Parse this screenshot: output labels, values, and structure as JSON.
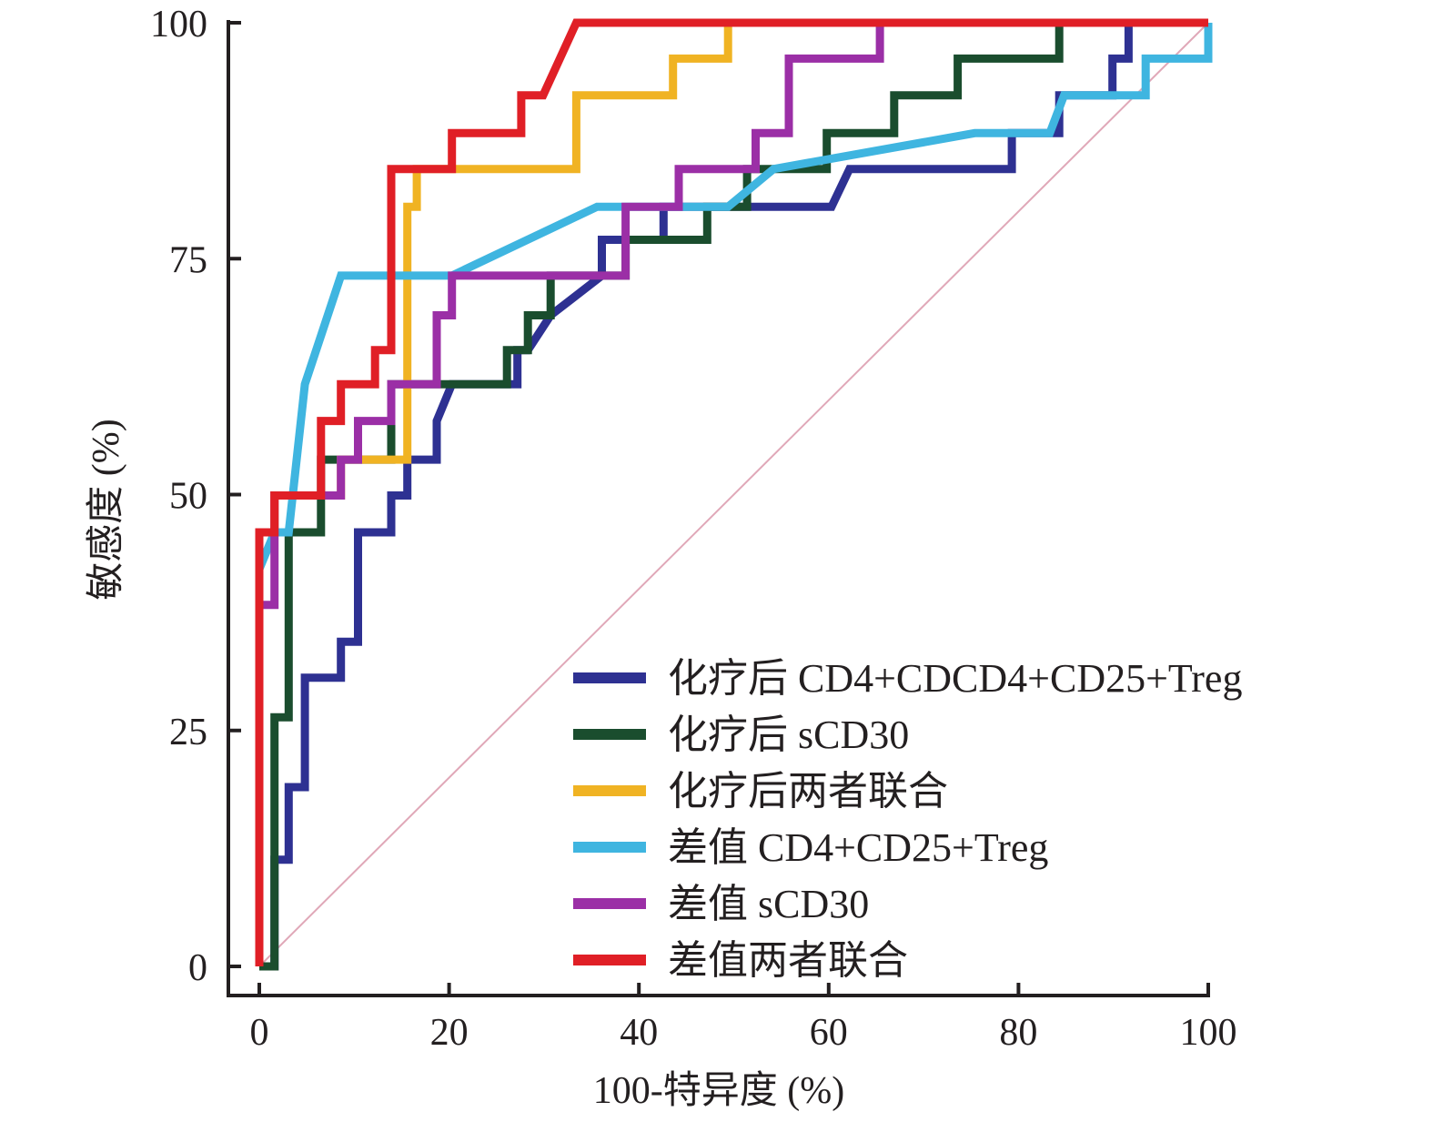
{
  "chart_data": {
    "type": "line",
    "title": "",
    "xlabel": "100-特异度 (%)",
    "ylabel": "敏感度 (%)",
    "xlim": [
      0,
      100
    ],
    "ylim": [
      0,
      100
    ],
    "xticks": [
      0,
      20,
      40,
      60,
      80,
      100
    ],
    "yticks": [
      0,
      25,
      50,
      75,
      100
    ],
    "xtick_labels": [
      "0",
      "20",
      "40",
      "60",
      "80",
      "100"
    ],
    "ytick_labels": [
      "0",
      "25",
      "50",
      "75",
      "100"
    ],
    "grid": false,
    "legend_position": "bottom-right",
    "reference_line": {
      "name": "diagonal",
      "x": [
        0,
        100
      ],
      "y": [
        0,
        100
      ],
      "color": "#e0a8b8"
    },
    "series": [
      {
        "name": "化疗后 CD4+CDCD4+CD25+Treg",
        "color": "#2e3192",
        "x": [
          0,
          1.6,
          1.6,
          3.1,
          3.1,
          4.8,
          4.8,
          8.6,
          8.6,
          10.4,
          10.4,
          13.9,
          13.9,
          15.6,
          15.6,
          18.7,
          18.7,
          20.3,
          27.2,
          27.2,
          28.3,
          30.7,
          30.7,
          36.1,
          36.1,
          38.6,
          42.6,
          42.6,
          45.4,
          60.3,
          62.2,
          79.3,
          79.3,
          84.3,
          84.3,
          89.9,
          89.9,
          91.6,
          91.6,
          100
        ],
        "y": [
          0,
          0,
          11.3,
          11.3,
          19,
          19,
          30.6,
          30.6,
          34.4,
          34.4,
          46,
          46,
          49.9,
          49.9,
          53.7,
          53.7,
          57.8,
          61.7,
          61.7,
          65.3,
          65.3,
          69,
          69,
          73.2,
          77,
          77,
          77,
          80.5,
          80.5,
          80.5,
          84.5,
          84.5,
          88.3,
          88.3,
          92.3,
          92.3,
          96.2,
          96.2,
          100,
          100
        ]
      },
      {
        "name": "化疗后 sCD30",
        "color": "#1a4d2e",
        "x": [
          0,
          1.6,
          1.6,
          3.1,
          3.1,
          6.5,
          6.5,
          13.9,
          13.9,
          26.1,
          26.1,
          28.3,
          28.3,
          30.7,
          30.7,
          38.6,
          38.6,
          47.2,
          47.2,
          51.4,
          51.4,
          59.8,
          59.8,
          66.9,
          66.9,
          73.6,
          73.6,
          84.3,
          84.3,
          94.8,
          94.8,
          100
        ],
        "y": [
          0,
          0,
          26.4,
          26.4,
          46,
          46,
          53.7,
          53.7,
          61.7,
          61.7,
          65.3,
          65.3,
          69,
          69,
          73.2,
          73.2,
          77,
          77,
          80.5,
          80.5,
          84.5,
          84.5,
          88.3,
          88.3,
          92.3,
          92.3,
          96.2,
          96.2,
          100,
          100,
          100,
          100
        ]
      },
      {
        "name": "化疗后两者联合",
        "color": "#f0b323",
        "x": [
          0,
          0,
          1.6,
          1.6,
          8.6,
          8.6,
          15.6,
          15.6,
          16.6,
          16.6,
          33.4,
          33.4,
          43.6,
          43.6,
          49.4,
          49.4,
          100
        ],
        "y": [
          0,
          46,
          46,
          49.9,
          49.9,
          53.7,
          53.7,
          80.5,
          80.5,
          84.5,
          84.5,
          92.3,
          92.3,
          96.2,
          96.2,
          100,
          100
        ]
      },
      {
        "name": "差值 CD4+CD25+Treg",
        "color": "#3fb5e0",
        "x": [
          0,
          0,
          1.6,
          3.1,
          4.8,
          8.6,
          20.3,
          35.6,
          49.4,
          54.2,
          75.4,
          83.3,
          84.8,
          93.4,
          93.4,
          100,
          100
        ],
        "y": [
          0,
          42.1,
          46,
          46,
          61.7,
          73.2,
          73.2,
          80.5,
          80.5,
          84.5,
          88.3,
          88.3,
          92.3,
          92.3,
          96.2,
          96.2,
          100
        ]
      },
      {
        "name": "差值 sCD30",
        "color": "#9b2fa6",
        "x": [
          0,
          0,
          1.6,
          1.6,
          8.6,
          8.6,
          10.4,
          10.4,
          13.9,
          13.9,
          18.7,
          18.7,
          20.3,
          20.3,
          38.6,
          38.6,
          44.2,
          44.2,
          52.3,
          52.3,
          55.8,
          55.8,
          65.4,
          65.4,
          100
        ],
        "y": [
          0,
          38.3,
          38.3,
          49.9,
          49.9,
          53.7,
          53.7,
          57.8,
          57.8,
          61.7,
          61.7,
          69,
          69,
          73.2,
          73.2,
          80.5,
          80.5,
          84.5,
          84.5,
          88.3,
          88.3,
          96.2,
          96.2,
          100,
          100
        ]
      },
      {
        "name": "差值两者联合",
        "color": "#e01f26",
        "x": [
          0,
          0,
          1.6,
          1.6,
          6.5,
          6.5,
          8.6,
          8.6,
          12.2,
          12.2,
          13.9,
          13.9,
          20.3,
          20.3,
          27.6,
          27.6,
          29.9,
          33.4,
          100
        ],
        "y": [
          0,
          46,
          46,
          49.9,
          49.9,
          57.8,
          57.8,
          61.7,
          61.7,
          65.3,
          65.3,
          84.5,
          84.5,
          88.3,
          88.3,
          92.3,
          92.3,
          100,
          100
        ]
      }
    ]
  }
}
